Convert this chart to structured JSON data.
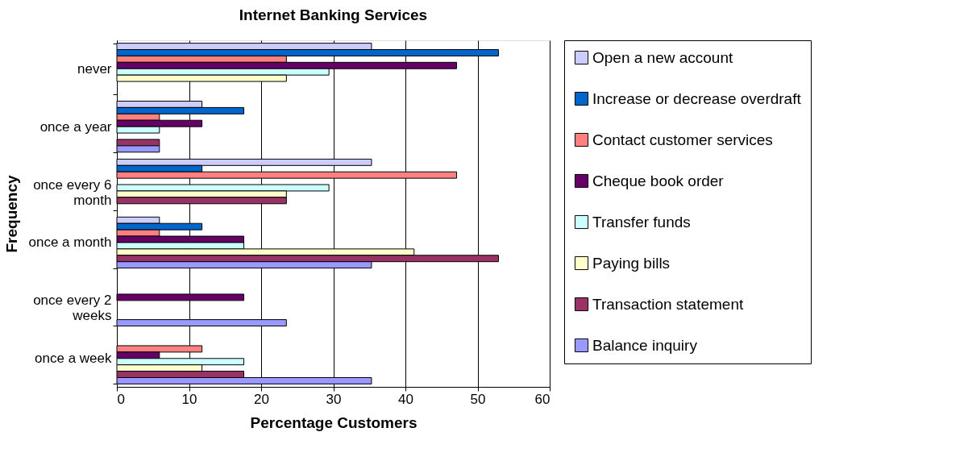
{
  "chart_data": {
    "type": "bar",
    "orientation": "horizontal",
    "title": "Internet Banking Services",
    "xlabel": "Percentage Customers",
    "ylabel": "Frequency",
    "categories": [
      "never",
      "once a year",
      "once every 6 month",
      "once a month",
      "once every 2 weeks",
      "once a week"
    ],
    "series": [
      {
        "name": "Open a new account",
        "color": "#ccccff",
        "values": [
          35.3,
          11.8,
          35.3,
          5.9,
          null,
          null
        ]
      },
      {
        "name": "Increase or decrease overdraft",
        "color": "#0066cc",
        "values": [
          52.9,
          17.6,
          11.8,
          11.8,
          null,
          null
        ]
      },
      {
        "name": "Contact customer services",
        "color": "#ff8080",
        "values": [
          23.5,
          5.9,
          47.1,
          5.9,
          null,
          11.8
        ]
      },
      {
        "name": "Cheque book order",
        "color": "#660066",
        "values": [
          47.1,
          11.8,
          null,
          17.6,
          17.6,
          5.9
        ]
      },
      {
        "name": "Transfer funds",
        "color": "#ccffff",
        "values": [
          29.4,
          5.9,
          29.4,
          17.6,
          null,
          17.6
        ]
      },
      {
        "name": "Paying bills",
        "color": "#ffffcc",
        "values": [
          23.5,
          null,
          23.5,
          41.2,
          null,
          11.8
        ]
      },
      {
        "name": "Transaction statement",
        "color": "#993366",
        "values": [
          null,
          5.9,
          23.5,
          52.9,
          null,
          17.6
        ]
      },
      {
        "name": "Balance inquiry",
        "color": "#9999ff",
        "values": [
          null,
          5.9,
          null,
          35.3,
          23.5,
          35.3
        ]
      }
    ],
    "xlim": [
      0,
      60
    ],
    "xticks": [
      0,
      10,
      20,
      30,
      40,
      50,
      60
    ],
    "grid": "x",
    "legend": "right"
  }
}
